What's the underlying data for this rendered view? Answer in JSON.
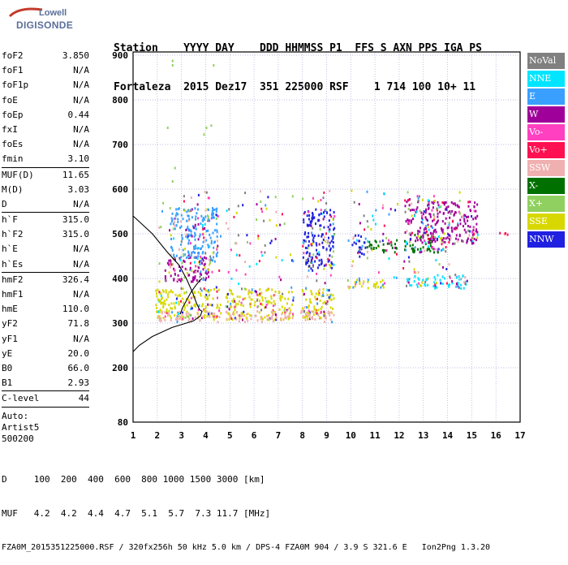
{
  "logo": {
    "line1": "Lowell",
    "line2": "DIGISONDE"
  },
  "header": {
    "line1": "Station    YYYY DAY    DDD HHMMSS P1  FFS S AXN PPS IGA PS",
    "line2": "Fortaleza  2015 Dez17  351 225000 RSF    1 714 100 10+ 11"
  },
  "params": {
    "group1": [
      {
        "k": "foF2",
        "v": "3.850"
      },
      {
        "k": "foF1",
        "v": "N/A"
      },
      {
        "k": "foF1p",
        "v": "N/A"
      },
      {
        "k": "foE",
        "v": "N/A"
      },
      {
        "k": "foEp",
        "v": "0.44"
      },
      {
        "k": "fxI",
        "v": "N/A"
      },
      {
        "k": "foEs",
        "v": "N/A"
      },
      {
        "k": "fmin",
        "v": "3.10"
      }
    ],
    "group2": [
      {
        "k": "MUF(D)",
        "v": "11.65"
      },
      {
        "k": "M(D)",
        "v": "3.03"
      },
      {
        "k": "D",
        "v": "N/A"
      }
    ],
    "group3": [
      {
        "k": "h`F",
        "v": "315.0"
      },
      {
        "k": "h`F2",
        "v": "315.0"
      },
      {
        "k": "h`E",
        "v": "N/A"
      },
      {
        "k": "h`Es",
        "v": "N/A"
      }
    ],
    "group4": [
      {
        "k": "hmF2",
        "v": "326.4"
      },
      {
        "k": "hmF1",
        "v": "N/A"
      },
      {
        "k": "hmE",
        "v": "110.0"
      },
      {
        "k": "yF2",
        "v": "71.8"
      },
      {
        "k": "yF1",
        "v": "N/A"
      },
      {
        "k": "yE",
        "v": "20.0"
      },
      {
        "k": "B0",
        "v": "66.0"
      },
      {
        "k": "B1",
        "v": "2.93"
      }
    ],
    "group5": [
      {
        "k": "C-level",
        "v": "44"
      }
    ],
    "auto": [
      "Auto:",
      "Artist5",
      "500200"
    ]
  },
  "legend": [
    {
      "label": "NoVal",
      "color": "#808080"
    },
    {
      "label": "NNE",
      "color": "#00e5ff"
    },
    {
      "label": "E",
      "color": "#3aa0ff"
    },
    {
      "label": "W",
      "color": "#a0009a"
    },
    {
      "label": "Vo-",
      "color": "#ff40c0"
    },
    {
      "label": "Vo+",
      "color": "#ff1050"
    },
    {
      "label": "SSW",
      "color": "#f0b0b0"
    },
    {
      "label": "X-",
      "color": "#007000"
    },
    {
      "label": "X+",
      "color": "#90d060"
    },
    {
      "label": "SSE",
      "color": "#d8d800"
    },
    {
      "label": "NNW",
      "color": "#2020e0"
    }
  ],
  "footer": {
    "line1": "D     100  200  400  600  800 1000 1500 3000 [km]",
    "line2": "MUF   4.2  4.2  4.4  4.7  5.1  5.7  7.3 11.7 [MHz]",
    "line3": "FZA0M_2015351225000.RSF / 320fx256h 50 kHz 5.0 km / DPS-4 FZA0M 904 / 3.9 S 321.6 E   Ion2Png 1.3.20"
  },
  "chart_data": {
    "type": "scatter",
    "xlim": [
      1,
      17
    ],
    "ylim": [
      80,
      900
    ],
    "x_ticks": [
      1,
      2,
      3,
      4,
      5,
      6,
      7,
      8,
      9,
      10,
      11,
      12,
      13,
      14,
      15,
      16,
      17
    ],
    "y_ticks": [
      80,
      200,
      300,
      400,
      500,
      600,
      700,
      800,
      900
    ],
    "grid": true,
    "xlabel": "",
    "ylabel": "",
    "clusters": [
      {
        "color": "SSE",
        "x": [
          1.9,
          9.3
        ],
        "y": [
          310,
          380
        ]
      },
      {
        "color": "SSW",
        "x": [
          2.0,
          9.3
        ],
        "y": [
          305,
          330
        ]
      },
      {
        "color": "W",
        "x": [
          2.3,
          4.2
        ],
        "y": [
          395,
          450
        ]
      },
      {
        "color": "E",
        "x": [
          2.5,
          4.5
        ],
        "y": [
          440,
          560
        ]
      },
      {
        "color": "NNW",
        "x": [
          8.0,
          9.3
        ],
        "y": [
          420,
          560
        ]
      },
      {
        "color": "SSE",
        "x": [
          9.8,
          11.5
        ],
        "y": [
          380,
          400
        ]
      },
      {
        "color": "NNW",
        "x": [
          10.0,
          10.6
        ],
        "y": [
          450,
          500
        ]
      },
      {
        "color": "X-",
        "x": [
          10.6,
          11.9
        ],
        "y": [
          460,
          490
        ]
      },
      {
        "color": "X-",
        "x": [
          12.2,
          13.8
        ],
        "y": [
          460,
          500
        ]
      },
      {
        "color": "NNE",
        "x": [
          12.3,
          14.8
        ],
        "y": [
          380,
          410
        ]
      },
      {
        "color": "W",
        "x": [
          12.2,
          15.2
        ],
        "y": [
          480,
          580
        ]
      },
      {
        "color": "Vo+",
        "x": [
          15.0,
          16.5
        ],
        "y": [
          500,
          505
        ]
      }
    ],
    "profile": [
      {
        "h": 540,
        "f": 1.0
      },
      {
        "h": 500,
        "f": 1.8
      },
      {
        "h": 460,
        "f": 2.4
      },
      {
        "h": 430,
        "f": 2.9
      },
      {
        "h": 400,
        "f": 3.2
      },
      {
        "h": 370,
        "f": 3.45
      },
      {
        "h": 345,
        "f": 3.62
      },
      {
        "h": 330,
        "f": 3.75
      },
      {
        "h": 326.4,
        "f": 3.85
      },
      {
        "h": 316,
        "f": 3.78
      },
      {
        "h": 305,
        "f": 3.5
      },
      {
        "h": 290,
        "f": 2.6
      },
      {
        "h": 270,
        "f": 1.8
      },
      {
        "h": 250,
        "f": 1.25
      },
      {
        "h": 236,
        "f": 1.0
      }
    ],
    "trace": [
      {
        "h": 320,
        "f": 2.95
      },
      {
        "h": 335,
        "f": 3.05
      },
      {
        "h": 350,
        "f": 3.2
      },
      {
        "h": 370,
        "f": 3.4
      },
      {
        "h": 385,
        "f": 3.6
      },
      {
        "h": 395,
        "f": 3.75
      },
      {
        "h": 400,
        "f": 3.85
      }
    ]
  }
}
